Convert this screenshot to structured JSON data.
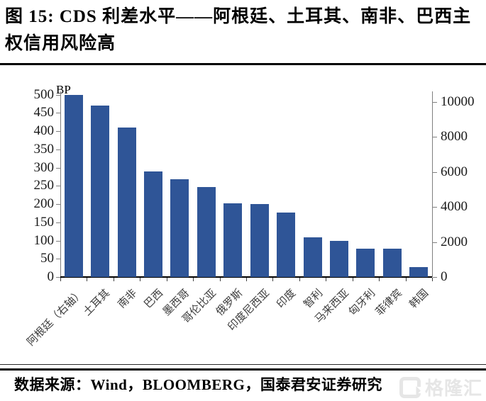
{
  "figure": {
    "title": "图 15: CDS 利差水平——阿根廷、土耳其、南非、巴西主权信用风险高",
    "source_note": "数据来源：Wind，BLOOMBERG，国泰君安证券研究"
  },
  "watermark": {
    "brand": "格隆汇",
    "icon": "gelonghui-g-icon"
  },
  "chart_data": {
    "type": "bar",
    "title": "CDS 利差水平——阿根廷、土耳其、南非、巴西主权信用风险高",
    "unit_label": "BP",
    "bar_color": "#2F5597",
    "grid": false,
    "legend_position": "none",
    "categories": [
      "阿根廷（右轴）",
      "土耳其",
      "南非",
      "巴西",
      "墨西哥",
      "哥伦比亚",
      "俄罗斯",
      "印度尼西亚",
      "印度",
      "智利",
      "马来西亚",
      "匈牙利",
      "菲律宾",
      "韩国"
    ],
    "values": [
      10400,
      470,
      410,
      290,
      267,
      247,
      201,
      200,
      176,
      108,
      99,
      78,
      77,
      28
    ],
    "value_axes": [
      "right",
      "left",
      "left",
      "left",
      "left",
      "left",
      "left",
      "left",
      "left",
      "left",
      "left",
      "left",
      "left",
      "left"
    ],
    "left_axis": {
      "min": 0,
      "max": 500,
      "tick_step": 50,
      "ticks": [
        0,
        50,
        100,
        150,
        200,
        250,
        300,
        350,
        400,
        450,
        500
      ]
    },
    "right_axis": {
      "min": 0,
      "max": 10400,
      "tick_step": 2000,
      "ticks": [
        0,
        2000,
        4000,
        6000,
        8000,
        10000
      ]
    }
  }
}
